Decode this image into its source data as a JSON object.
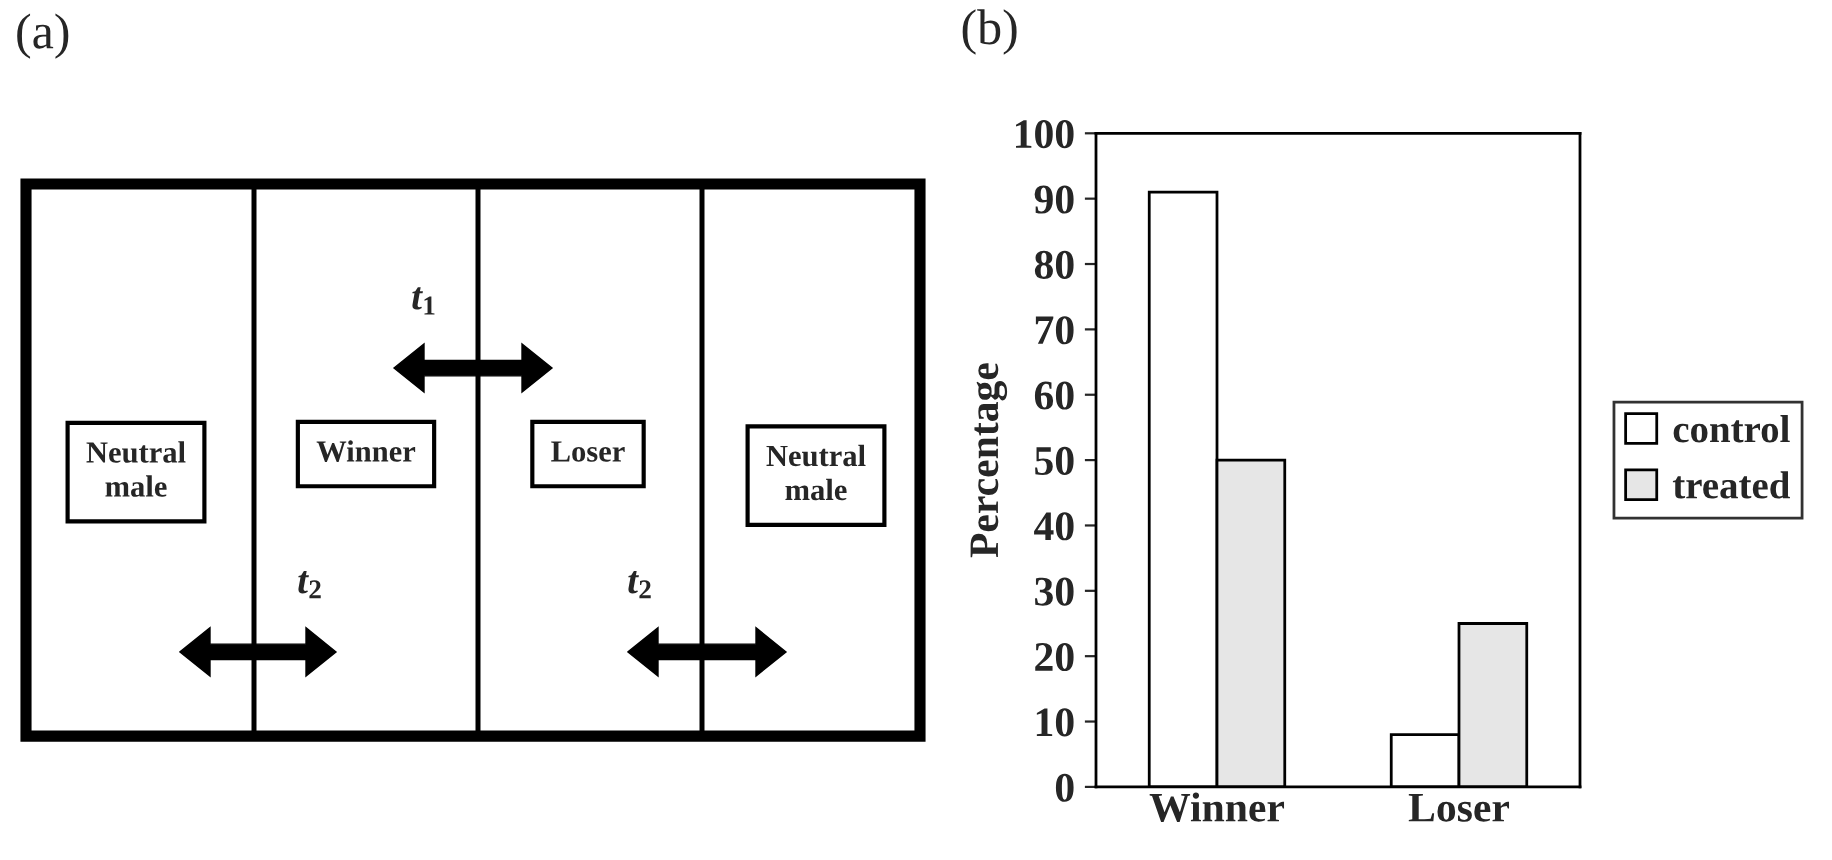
{
  "chart_data": [
    {
      "type": "other",
      "title": "(a)",
      "annotations": [
        "Neutral\nmale",
        "Winner",
        "Loser",
        "Neutral\nmale",
        "t$_{1}$",
        "t$_{2}$",
        "t$_{2}$"
      ]
    },
    {
      "type": "bar",
      "title": "(b)",
      "ylabel": "Percentage",
      "categories": [
        "Winner",
        "Loser"
      ],
      "series": [
        {
          "name": "control",
          "color": "#ffffff",
          "values": [
            91,
            8
          ]
        },
        {
          "name": "treated",
          "color": "#e6e6e6",
          "values": [
            50,
            25
          ]
        }
      ],
      "ylim": [
        0,
        100
      ],
      "yticks": [
        0,
        10,
        20,
        30,
        40,
        50,
        60,
        70,
        80,
        90,
        100
      ],
      "grid": false,
      "legend": "right"
    }
  ]
}
